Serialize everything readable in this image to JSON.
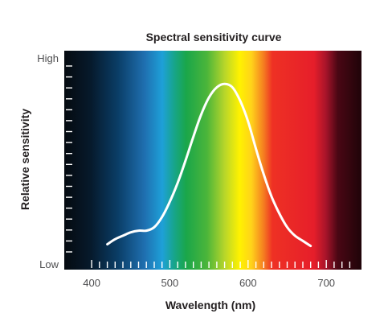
{
  "chart_data": {
    "type": "line",
    "title": "Spectral sensitivity curve",
    "xlabel": "Wavelength (nm)",
    "ylabel": "Relative sensitivity",
    "y_tick_labels": {
      "high": "High",
      "low": "Low"
    },
    "xlim": [
      365,
      745
    ],
    "ylim": [
      0,
      1
    ],
    "x_ticks": [
      400,
      500,
      600,
      700
    ],
    "x_tick_labels": [
      "400",
      "500",
      "600",
      "700"
    ],
    "x_minor_step": 10,
    "y_minor_ticks": 18,
    "grid": false,
    "background": "visible-spectrum gradient",
    "series": [
      {
        "color": "#ffffff",
        "x": [
          420,
          430,
          440,
          450,
          460,
          470,
          480,
          490,
          500,
          510,
          520,
          530,
          540,
          550,
          560,
          570,
          580,
          590,
          600,
          610,
          620,
          630,
          640,
          650,
          660,
          670,
          680
        ],
        "y": [
          0.04,
          0.07,
          0.09,
          0.11,
          0.12,
          0.12,
          0.14,
          0.2,
          0.29,
          0.4,
          0.53,
          0.67,
          0.8,
          0.9,
          0.96,
          0.98,
          0.96,
          0.88,
          0.76,
          0.6,
          0.45,
          0.32,
          0.22,
          0.14,
          0.09,
          0.06,
          0.03
        ]
      }
    ]
  }
}
